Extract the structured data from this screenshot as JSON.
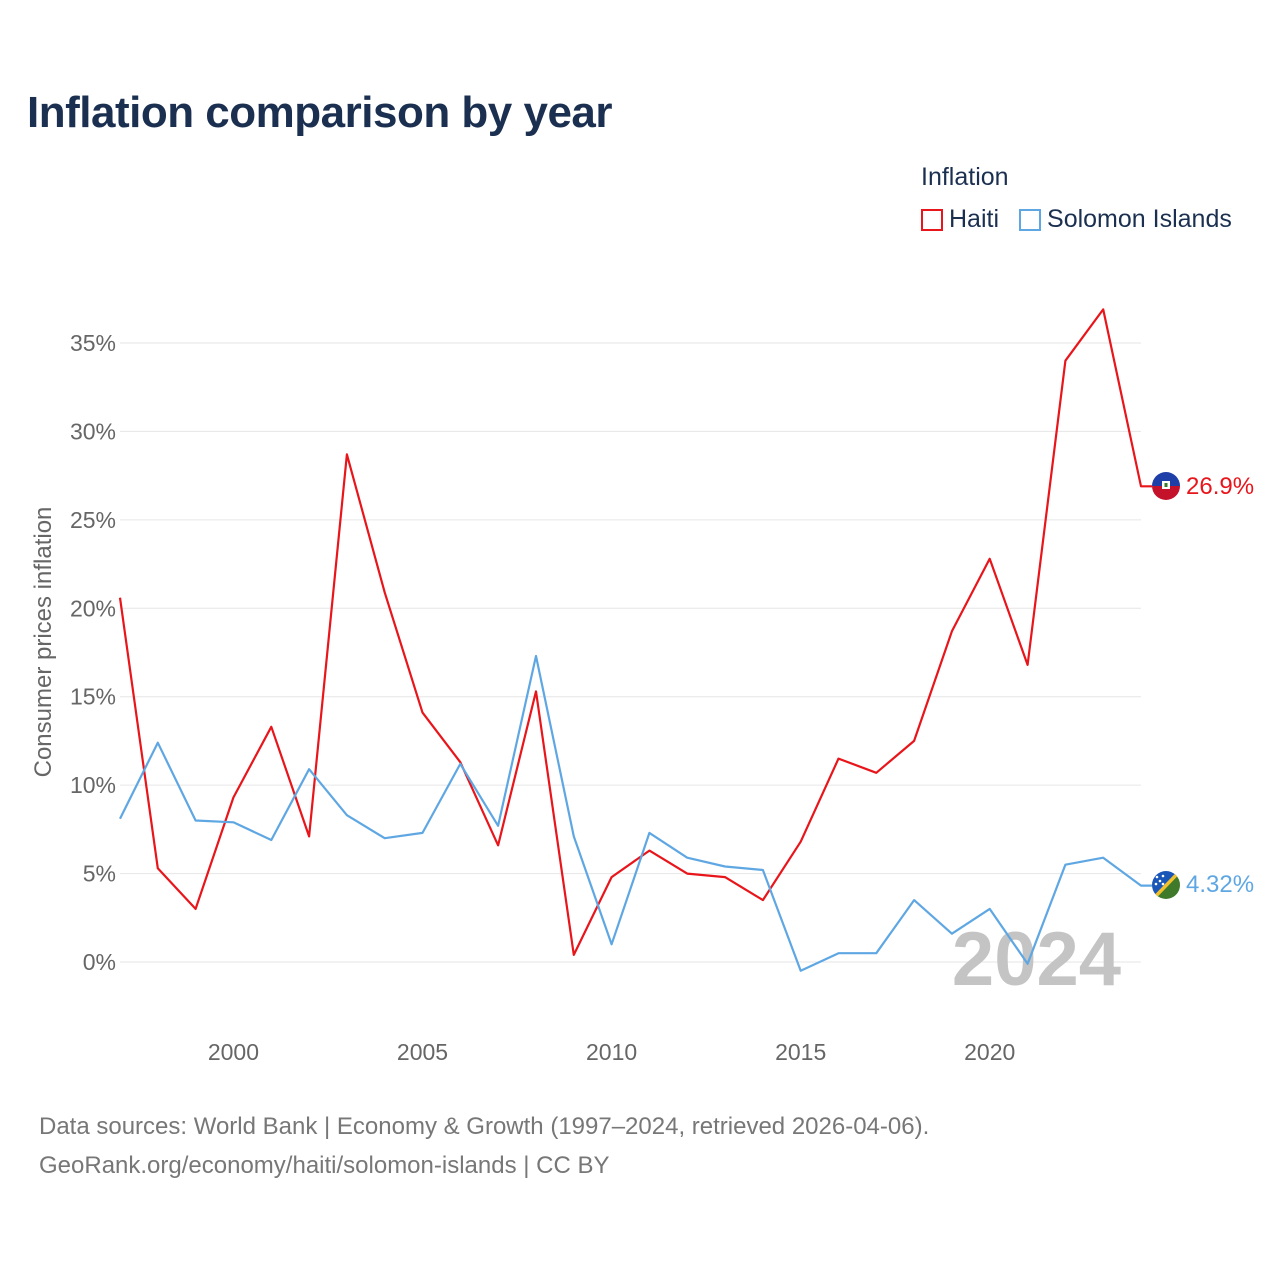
{
  "title": "Inflation comparison by year",
  "legend": {
    "title": "Inflation",
    "items": [
      {
        "label": "Haiti",
        "color": "#e8151b"
      },
      {
        "label": "Solomon Islands",
        "color": "#5fa7e3"
      }
    ]
  },
  "footer": {
    "line1": "Data sources: World Bank | Economy & Growth (1997–2024, retrieved 2026-04-06).",
    "line2": "GeoRank.org/economy/haiti/solomon-islands | CC BY"
  },
  "chart_data": {
    "type": "line",
    "title": "Inflation comparison by year",
    "xlabel": "",
    "ylabel": "Consumer prices inflation",
    "xlim": [
      1997,
      2024
    ],
    "ylim": [
      -3,
      37
    ],
    "x_ticks": [
      2000,
      2005,
      2010,
      2015,
      2020
    ],
    "y_ticks": [
      0,
      5,
      10,
      15,
      20,
      25,
      30,
      35
    ],
    "y_tick_labels": [
      "0%",
      "5%",
      "10%",
      "15%",
      "20%",
      "25%",
      "30%",
      "35%"
    ],
    "watermark": "2024",
    "grid": true,
    "x": [
      1997,
      1998,
      1999,
      2000,
      2001,
      2002,
      2003,
      2004,
      2005,
      2006,
      2007,
      2008,
      2009,
      2010,
      2011,
      2012,
      2013,
      2014,
      2015,
      2016,
      2017,
      2018,
      2019,
      2020,
      2021,
      2022,
      2023,
      2024
    ],
    "series": [
      {
        "name": "Haiti",
        "color": "#e8151b",
        "end_label": "26.9%",
        "values": [
          20.6,
          5.3,
          3.0,
          9.3,
          13.3,
          7.1,
          28.7,
          20.9,
          14.1,
          11.3,
          6.6,
          15.3,
          0.4,
          4.8,
          6.3,
          5.0,
          4.8,
          3.5,
          6.8,
          11.5,
          10.7,
          12.5,
          18.7,
          22.8,
          16.8,
          34.0,
          36.9,
          26.9
        ]
      },
      {
        "name": "Solomon Islands",
        "color": "#5fa7e3",
        "end_label": "4.32%",
        "values": [
          8.1,
          12.4,
          8.0,
          7.9,
          6.9,
          10.9,
          8.3,
          7.0,
          7.3,
          11.2,
          7.7,
          17.3,
          7.1,
          1.0,
          7.3,
          5.9,
          5.4,
          5.2,
          -0.5,
          0.5,
          0.5,
          3.5,
          1.6,
          3.0,
          -0.1,
          5.5,
          5.9,
          4.32
        ]
      }
    ]
  }
}
